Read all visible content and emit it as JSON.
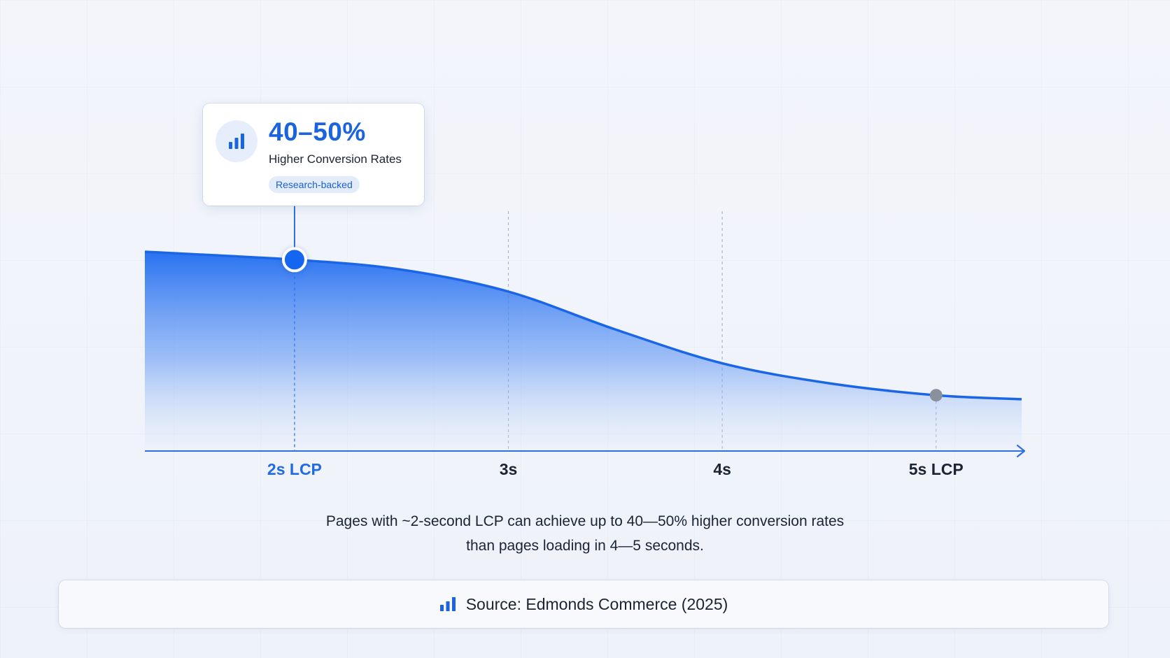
{
  "chart_data": {
    "type": "area",
    "x": [
      1.3,
      2,
      2.5,
      3,
      3.5,
      4,
      4.5,
      5,
      5.4
    ],
    "y": [
      100,
      96,
      91,
      80,
      61,
      44,
      34,
      28,
      26
    ],
    "x_ticks": [
      {
        "value": 2,
        "label": "2s LCP",
        "highlight": true
      },
      {
        "value": 3,
        "label": "3s",
        "highlight": false
      },
      {
        "value": 4,
        "label": "4s",
        "highlight": false
      },
      {
        "value": 5,
        "label": "5s LCP",
        "highlight": false
      }
    ],
    "xlim": [
      1.3,
      5.4
    ],
    "ylim": [
      0,
      100
    ],
    "markers": [
      {
        "x": 2,
        "y": 96,
        "style": "primary"
      },
      {
        "x": 5,
        "y": 28,
        "style": "muted"
      }
    ]
  },
  "callout": {
    "value": "40–50%",
    "label": "Higher Conversion Rates",
    "badge": "Research-backed",
    "icon": "bar-chart-icon"
  },
  "caption": {
    "line1": "Pages with ~2-second LCP can achieve up to 40—50% higher conversion rates",
    "line2": "than pages loading in 4—5 seconds."
  },
  "source": {
    "text": "Source: Edmonds Commerce (2025)",
    "icon": "bar-chart-icon"
  },
  "colors": {
    "accent": "#1a64e0",
    "line": "#1b66e6",
    "muted_marker": "#8a919c",
    "axis": "#2f6fe0"
  }
}
